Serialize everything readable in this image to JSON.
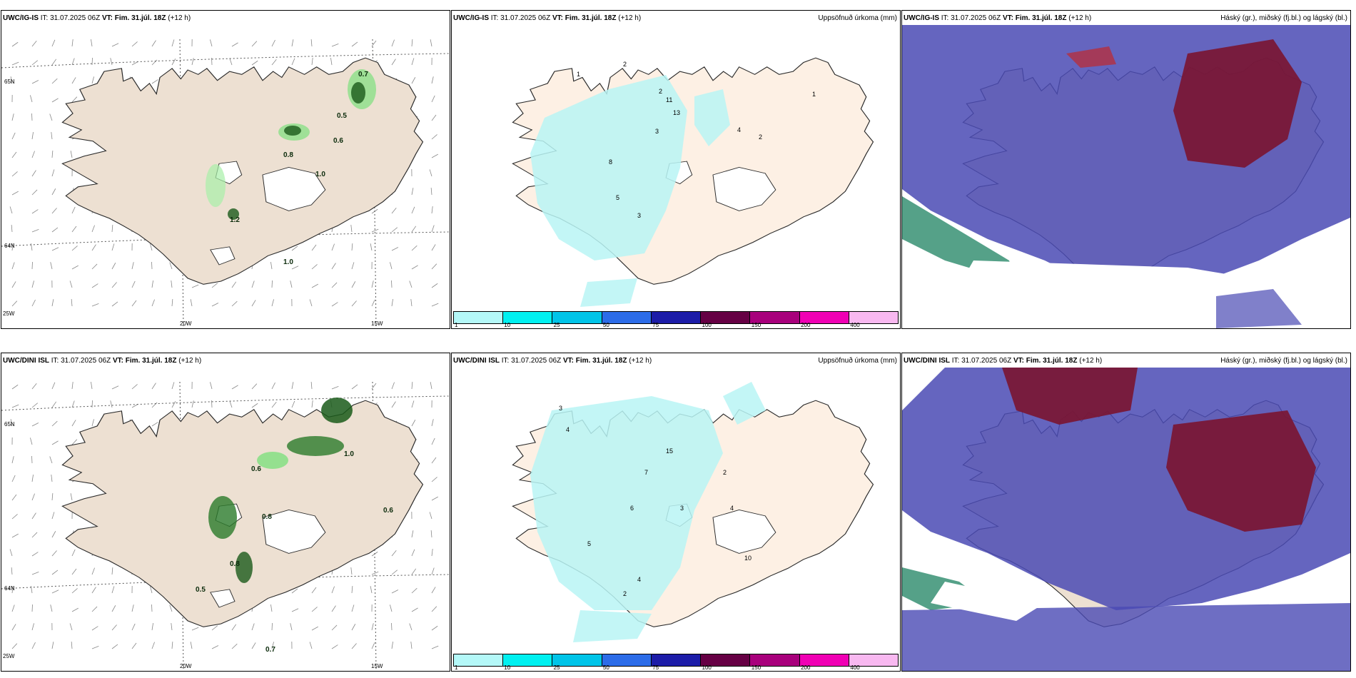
{
  "panels": [
    {
      "model": "UWC/IG-IS",
      "it_label": "IT:",
      "it": "31.07.2025 06Z",
      "vt_label": "VT:",
      "vt": "Fim. 31.júl. 18Z",
      "lead": "(+12 h)",
      "right_title": ""
    },
    {
      "model": "UWC/IG-IS",
      "it_label": "IT:",
      "it": "31.07.2025 06Z",
      "vt_label": "VT:",
      "vt": "Fim. 31.júl. 18Z",
      "lead": "(+12 h)",
      "right_title": "Uppsöfnuð úrkoma (mm)"
    },
    {
      "model": "UWC/IG-IS",
      "it_label": "IT:",
      "it": "31.07.2025 06Z",
      "vt_label": "VT:",
      "vt": "Fim. 31.júl. 18Z",
      "lead": "(+12 h)",
      "right_title": "Háský (gr.), miðský (fj.bl.) og lágský (bl.)"
    },
    {
      "model": "UWC/DINI ISL",
      "it_label": "IT:",
      "it": "31.07.2025 06Z",
      "vt_label": "VT:",
      "vt": "Fim. 31.júl. 18Z",
      "lead": "(+12 h)",
      "right_title": ""
    },
    {
      "model": "UWC/DINI ISL",
      "it_label": "IT:",
      "it": "31.07.2025 06Z",
      "vt_label": "VT:",
      "vt": "Fim. 31.júl. 18Z",
      "lead": "(+12 h)",
      "right_title": "Uppsöfnuð úrkoma (mm)"
    },
    {
      "model": "UWC/DINI ISL",
      "it_label": "IT:",
      "it": "31.07.2025 06Z",
      "vt_label": "VT:",
      "vt": "Fim. 31.júl. 18Z",
      "lead": "(+12 h)",
      "right_title": "Háský (gr.), miðský (fj.bl.) og lágský (bl.)"
    }
  ],
  "axis_labels": {
    "lat_top": "65N",
    "lat_bottom": "64N",
    "lon_left": "20W",
    "lon_right": "15W",
    "corner": "25W"
  },
  "colorbar": {
    "ticks": [
      "1",
      "10",
      "25",
      "50",
      "75",
      "100",
      "150",
      "200",
      "400"
    ],
    "colors": [
      "#b4f8f8",
      "#00f0f0",
      "#00c4e8",
      "#2c6ce8",
      "#1c1ca8",
      "#660044",
      "#a8007c",
      "#f000b4",
      "#f8b8f0"
    ]
  },
  "colors": {
    "land": "#ede0d2",
    "coast": "#2a2a2a",
    "precip": "#b8f5f5",
    "green": "#7ee07e",
    "darkgreen": "#1a5a1a",
    "low_cloud": "#4a4ab4",
    "high_cloud": "#7a1430"
  },
  "precip_labels_top": [
    "2",
    "1",
    "2",
    "11",
    "13",
    "3",
    "8",
    "5",
    "3",
    "4",
    "2",
    "1"
  ],
  "precip_labels_bottom": [
    "3",
    "4",
    "15",
    "7",
    "5",
    "4",
    "6",
    "3",
    "2",
    "10",
    "4",
    "2"
  ],
  "green_labels_top": [
    "0.7",
    "0.6",
    "0.8",
    "1.0",
    "1.2",
    "1.0",
    "0.5"
  ],
  "green_labels_bottom": [
    "0.6",
    "0.8",
    "0.5",
    "0.7",
    "0.8",
    "1.0",
    "0.6"
  ]
}
